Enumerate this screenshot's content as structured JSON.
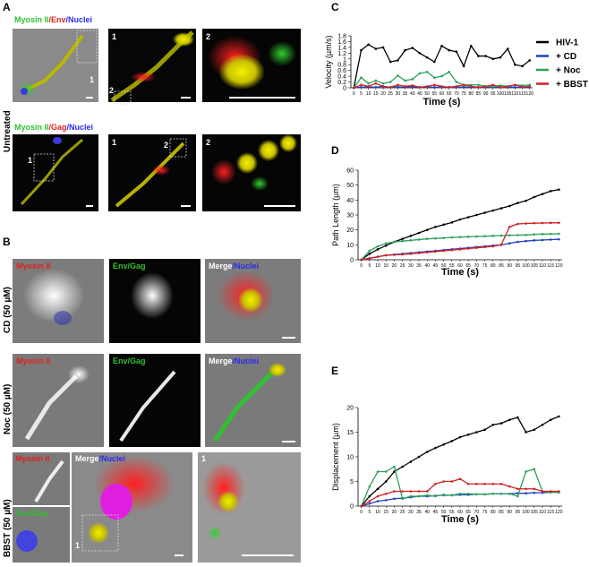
{
  "panel_labels": [
    "A",
    "B",
    "C",
    "D",
    "E"
  ],
  "panel_a": {
    "condition": "Untreated",
    "row1_label": [
      "Myosin II",
      "/Env",
      "/Nuclei"
    ],
    "row2_label": [
      "Myosin II",
      "/Gag",
      "/Nuclei"
    ],
    "row1_insets": [
      "1",
      "1",
      "2",
      "2"
    ],
    "row2_insets": [
      "1",
      "1",
      "2",
      "2"
    ]
  },
  "panel_b": {
    "conditions": [
      "CD (50 µM)",
      "Noc (50 µM)",
      "BBST (50 µM)"
    ],
    "channel_myosin": "Myosin II",
    "channel_envgag": "Env/Gag",
    "channel_merge": [
      "Merge",
      "/Nuclei"
    ],
    "bbst_insets": [
      "1",
      "1"
    ]
  },
  "chart_data": [
    {
      "type": "line",
      "ylabel": "Velocity (µm/s)",
      "xlabel": "Time (s)",
      "legend": "right",
      "x": [
        0,
        5,
        10,
        15,
        20,
        25,
        30,
        35,
        40,
        45,
        50,
        55,
        60,
        65,
        70,
        75,
        80,
        85,
        90,
        95,
        100,
        105,
        110,
        115,
        120
      ],
      "xlim": [
        -2,
        122
      ],
      "xticks": [
        0,
        5,
        10,
        15,
        20,
        25,
        30,
        35,
        40,
        45,
        50,
        55,
        60,
        65,
        70,
        75,
        80,
        85,
        90,
        95,
        100,
        105,
        110,
        115,
        120
      ],
      "ylim": [
        0,
        1.8
      ],
      "yticks": [
        0,
        0.2,
        0.4,
        0.6,
        0.8,
        1,
        1.2,
        1.4,
        1.6,
        1.8
      ],
      "series": [
        {
          "name": "HIV-1",
          "color": "#000000",
          "values": [
            0,
            1.3,
            1.5,
            1.35,
            1.4,
            0.9,
            0.95,
            1.3,
            1.38,
            1.2,
            1.05,
            0.9,
            1.45,
            1.3,
            1.25,
            0.75,
            1.45,
            1.1,
            1.1,
            1.0,
            1.05,
            1.35,
            0.8,
            0.75,
            0.95
          ]
        },
        {
          "name": "+ CD",
          "color": "#1f3fbf",
          "values": [
            0,
            0.02,
            0.03,
            0.02,
            0.05,
            0.02,
            0.03,
            0.02,
            0.04,
            0.02,
            0.03,
            0.02,
            0.03,
            0.02,
            0.02,
            0.03,
            0.02,
            0.02,
            0.03,
            0.02,
            0.02,
            0.03,
            0.02,
            0.02,
            0.02
          ]
        },
        {
          "name": "+ Noc",
          "color": "#2ca05a",
          "values": [
            0,
            0.35,
            0.15,
            0.25,
            0.15,
            0.2,
            0.42,
            0.25,
            0.3,
            0.5,
            0.55,
            0.35,
            0.4,
            0.55,
            0.2,
            0.1,
            0.1,
            0.1,
            0.05,
            0.05,
            0.08,
            0.05,
            0.1,
            0.08,
            0.1
          ]
        },
        {
          "name": "+ BBST",
          "color": "#d02020",
          "values": [
            0,
            0.1,
            0.05,
            0.15,
            0.05,
            0.02,
            0.1,
            0.05,
            0.08,
            0.02,
            0.05,
            0.1,
            0.05,
            0.02,
            0.05,
            0.1,
            0.05,
            0.02,
            0.05,
            0.1,
            0.02,
            0.05,
            0.1,
            0.03,
            0.05
          ]
        }
      ]
    },
    {
      "type": "line",
      "ylabel": "Path Length (µm)",
      "xlabel": "Time (s)",
      "x": [
        0,
        5,
        10,
        15,
        20,
        25,
        30,
        35,
        40,
        45,
        50,
        55,
        60,
        65,
        70,
        75,
        80,
        85,
        90,
        95,
        100,
        105,
        110,
        115,
        120
      ],
      "xlim": [
        -2,
        122
      ],
      "xticks": [
        0,
        5,
        10,
        15,
        20,
        25,
        30,
        35,
        40,
        45,
        50,
        55,
        60,
        65,
        70,
        75,
        80,
        85,
        90,
        95,
        100,
        105,
        110,
        115,
        120
      ],
      "ylim": [
        0,
        60
      ],
      "yticks": [
        0,
        10,
        20,
        30,
        40,
        50,
        60
      ],
      "series": [
        {
          "color": "#000000",
          "values": [
            0,
            4,
            7,
            9.5,
            12,
            14,
            16,
            18,
            20,
            22,
            23.5,
            25,
            27,
            28.5,
            30,
            31.5,
            33,
            34.5,
            36,
            38,
            39.5,
            42,
            44,
            46,
            47
          ]
        },
        {
          "color": "#1f3fbf",
          "values": [
            0,
            1,
            2,
            3,
            3.5,
            4,
            4.5,
            5,
            5.5,
            6,
            6.5,
            7,
            7.5,
            8,
            8.5,
            9,
            9.5,
            10,
            11,
            12,
            12.5,
            13,
            13.2,
            13.5,
            13.7
          ]
        },
        {
          "color": "#2ca05a",
          "values": [
            0,
            6,
            9,
            11,
            12,
            12.5,
            13,
            13.5,
            14,
            14.3,
            14.6,
            15,
            15.2,
            15.4,
            15.6,
            15.8,
            16,
            16.2,
            16.4,
            16.5,
            16.6,
            17,
            17.2,
            17.3,
            17.4
          ]
        },
        {
          "color": "#d02020",
          "values": [
            0,
            1,
            2,
            3,
            3.3,
            3.6,
            4,
            4.5,
            5,
            5.5,
            6,
            6.5,
            7,
            7.5,
            8,
            8.5,
            9,
            10,
            22,
            24,
            24.3,
            24.5,
            24.6,
            24.7,
            24.8
          ]
        }
      ]
    },
    {
      "type": "line",
      "ylabel": "Displacement (µm)",
      "xlabel": "Time (s)",
      "x": [
        0,
        5,
        10,
        15,
        20,
        25,
        30,
        35,
        40,
        45,
        50,
        55,
        60,
        65,
        70,
        75,
        80,
        85,
        90,
        95,
        100,
        105,
        110,
        115,
        120
      ],
      "xlim": [
        -2,
        122
      ],
      "xticks": [
        0,
        5,
        10,
        15,
        20,
        25,
        30,
        35,
        40,
        45,
        50,
        55,
        60,
        65,
        70,
        75,
        80,
        85,
        90,
        95,
        100,
        105,
        110,
        115,
        120
      ],
      "ylim": [
        0,
        20
      ],
      "yticks": [
        0,
        5,
        10,
        15,
        20
      ],
      "series": [
        {
          "color": "#000000",
          "values": [
            0,
            2,
            3.5,
            5,
            7,
            8,
            9,
            10,
            11,
            11.8,
            12.5,
            13.2,
            14,
            14.5,
            15,
            15.5,
            16.5,
            16.8,
            17.5,
            18,
            15,
            15.5,
            16.5,
            17.5,
            18.2
          ]
        },
        {
          "color": "#1f3fbf",
          "values": [
            0,
            0.5,
            1,
            1.2,
            1.5,
            1.6,
            1.8,
            2,
            2,
            2.1,
            2.2,
            2.2,
            2.3,
            2.3,
            2.4,
            2.4,
            2.5,
            2.5,
            2.5,
            2.6,
            2.6,
            2.7,
            2.7,
            2.8,
            2.8
          ]
        },
        {
          "color": "#2ca05a",
          "values": [
            0,
            4,
            7,
            7,
            8,
            1.5,
            2,
            2,
            2.2,
            2,
            2.3,
            2.2,
            2.5,
            2.5,
            2.4,
            2.4,
            2.5,
            2.5,
            2.5,
            2,
            7,
            7.5,
            3,
            2.8,
            2.8
          ]
        },
        {
          "color": "#d02020",
          "values": [
            0,
            1,
            2,
            2.5,
            3,
            3,
            3,
            3,
            3,
            4.5,
            5,
            5,
            5.5,
            4.5,
            4.5,
            4.5,
            4.5,
            4.5,
            4,
            3.5,
            3.5,
            3.5,
            3,
            3,
            3
          ]
        }
      ]
    }
  ]
}
